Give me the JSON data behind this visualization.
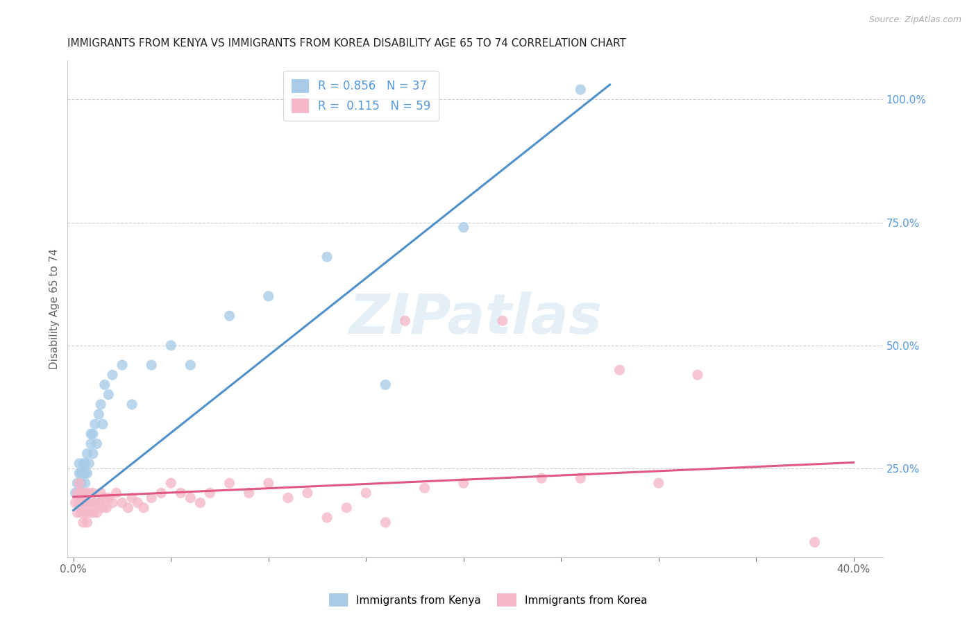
{
  "title": "IMMIGRANTS FROM KENYA VS IMMIGRANTS FROM KOREA DISABILITY AGE 65 TO 74 CORRELATION CHART",
  "source": "Source: ZipAtlas.com",
  "ylabel": "Disability Age 65 to 74",
  "xlim": [
    -0.003,
    0.415
  ],
  "ylim": [
    0.07,
    1.08
  ],
  "xticks": [
    0.0,
    0.05,
    0.1,
    0.15,
    0.2,
    0.25,
    0.3,
    0.35,
    0.4
  ],
  "xticklabels": [
    "0.0%",
    "",
    "",
    "",
    "",
    "",
    "",
    "",
    "40.0%"
  ],
  "yticks_right": [
    0.25,
    0.5,
    0.75,
    1.0
  ],
  "ytick_labels_right": [
    "25.0%",
    "50.0%",
    "75.0%",
    "100.0%"
  ],
  "kenya_color": "#a8cce8",
  "korea_color": "#f4b8c8",
  "kenya_line_color": "#4f90c8",
  "korea_line_color": "#e05880",
  "kenya_label": "Immigrants from Kenya",
  "korea_label": "Immigrants from Korea",
  "kenya_R": "0.856",
  "kenya_N": "37",
  "korea_R": "0.115",
  "korea_N": "59",
  "watermark": "ZIPatlas",
  "kenya_scatter_x": [
    0.001,
    0.002,
    0.003,
    0.003,
    0.004,
    0.004,
    0.005,
    0.005,
    0.006,
    0.006,
    0.006,
    0.007,
    0.007,
    0.008,
    0.009,
    0.009,
    0.01,
    0.01,
    0.011,
    0.012,
    0.013,
    0.014,
    0.015,
    0.016,
    0.018,
    0.02,
    0.025,
    0.03,
    0.04,
    0.05,
    0.06,
    0.08,
    0.1,
    0.13,
    0.16,
    0.2,
    0.26
  ],
  "kenya_scatter_y": [
    0.2,
    0.22,
    0.24,
    0.26,
    0.22,
    0.24,
    0.24,
    0.26,
    0.22,
    0.24,
    0.26,
    0.24,
    0.28,
    0.26,
    0.3,
    0.32,
    0.28,
    0.32,
    0.34,
    0.3,
    0.36,
    0.38,
    0.34,
    0.42,
    0.4,
    0.44,
    0.46,
    0.38,
    0.46,
    0.5,
    0.46,
    0.56,
    0.6,
    0.68,
    0.42,
    0.74,
    1.02
  ],
  "korea_scatter_x": [
    0.001,
    0.002,
    0.002,
    0.003,
    0.003,
    0.004,
    0.004,
    0.005,
    0.005,
    0.006,
    0.006,
    0.007,
    0.007,
    0.008,
    0.008,
    0.009,
    0.01,
    0.01,
    0.011,
    0.012,
    0.013,
    0.014,
    0.015,
    0.016,
    0.017,
    0.018,
    0.02,
    0.022,
    0.025,
    0.028,
    0.03,
    0.033,
    0.036,
    0.04,
    0.045,
    0.05,
    0.055,
    0.06,
    0.065,
    0.07,
    0.08,
    0.09,
    0.1,
    0.11,
    0.12,
    0.13,
    0.14,
    0.15,
    0.16,
    0.17,
    0.18,
    0.2,
    0.22,
    0.24,
    0.26,
    0.28,
    0.3,
    0.32,
    0.38
  ],
  "korea_scatter_y": [
    0.18,
    0.16,
    0.2,
    0.18,
    0.22,
    0.16,
    0.2,
    0.14,
    0.18,
    0.16,
    0.2,
    0.14,
    0.18,
    0.16,
    0.2,
    0.18,
    0.16,
    0.2,
    0.18,
    0.16,
    0.18,
    0.2,
    0.17,
    0.19,
    0.17,
    0.19,
    0.18,
    0.2,
    0.18,
    0.17,
    0.19,
    0.18,
    0.17,
    0.19,
    0.2,
    0.22,
    0.2,
    0.19,
    0.18,
    0.2,
    0.22,
    0.2,
    0.22,
    0.19,
    0.2,
    0.15,
    0.17,
    0.2,
    0.14,
    0.55,
    0.21,
    0.22,
    0.55,
    0.23,
    0.23,
    0.45,
    0.22,
    0.44,
    0.1
  ],
  "kenya_line_x0": 0.0,
  "kenya_line_y0": 0.165,
  "kenya_line_x1": 0.275,
  "kenya_line_y1": 1.03,
  "korea_line_x0": 0.0,
  "korea_line_y0": 0.192,
  "korea_line_x1": 0.4,
  "korea_line_y1": 0.262,
  "background_color": "#ffffff",
  "grid_color": "#cccccc",
  "title_color": "#222222",
  "title_fontsize": 11,
  "axis_label_color": "#666666",
  "right_axis_color": "#5599dd"
}
